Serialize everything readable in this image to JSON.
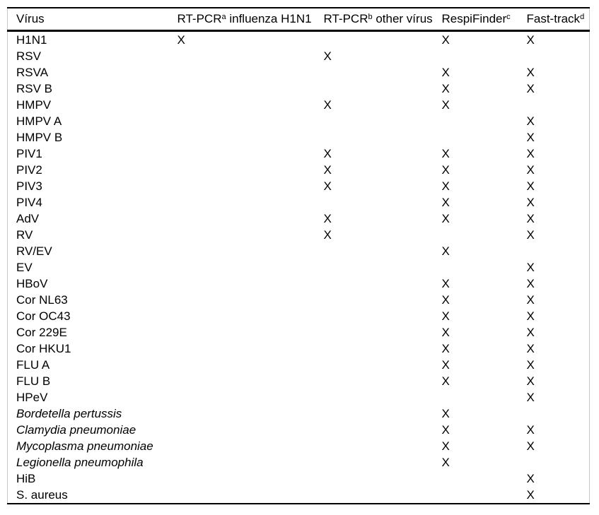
{
  "page": {
    "background": "#ffffff",
    "text_color": "#000000",
    "rule_color": "#000000",
    "frame_side_color": "#c9c9c9"
  },
  "table": {
    "mark_symbol": "X",
    "columns": [
      {
        "id": "virus",
        "text": "Vírus",
        "sup": "",
        "rest": ""
      },
      {
        "id": "rt-pcr-influenza",
        "text": "RT-PCR",
        "sup": "a",
        "rest": " influenza H1N1"
      },
      {
        "id": "rt-pcr-other-virus",
        "text": "RT-PCR",
        "sup": "b",
        "rest": " other vírus"
      },
      {
        "id": "respifinder",
        "text": "RespiFinder",
        "sup": "c",
        "rest": ""
      },
      {
        "id": "fast-track",
        "text": "Fast-track",
        "sup": "d",
        "rest": ""
      }
    ],
    "rows": [
      {
        "virus": "H1N1",
        "italic": false,
        "marks": [
          "X",
          "",
          "X",
          "X"
        ]
      },
      {
        "virus": "RSV",
        "italic": false,
        "marks": [
          "",
          "X",
          "",
          ""
        ]
      },
      {
        "virus": "RSVA",
        "italic": false,
        "marks": [
          "",
          "",
          "X",
          "X"
        ]
      },
      {
        "virus": "RSV B",
        "italic": false,
        "marks": [
          "",
          "",
          "X",
          "X"
        ]
      },
      {
        "virus": "HMPV",
        "italic": false,
        "marks": [
          "",
          "X",
          "X",
          ""
        ]
      },
      {
        "virus": "HMPV A",
        "italic": false,
        "marks": [
          "",
          "",
          "",
          "X"
        ]
      },
      {
        "virus": "HMPV B",
        "italic": false,
        "marks": [
          "",
          "",
          "",
          "X"
        ]
      },
      {
        "virus": "PIV1",
        "italic": false,
        "marks": [
          "",
          "X",
          "X",
          "X"
        ]
      },
      {
        "virus": "PIV2",
        "italic": false,
        "marks": [
          "",
          "X",
          "X",
          "X"
        ]
      },
      {
        "virus": "PIV3",
        "italic": false,
        "marks": [
          "",
          "X",
          "X",
          "X"
        ]
      },
      {
        "virus": "PIV4",
        "italic": false,
        "marks": [
          "",
          "",
          "X",
          "X"
        ]
      },
      {
        "virus": "AdV",
        "italic": false,
        "marks": [
          "",
          "X",
          "X",
          "X"
        ]
      },
      {
        "virus": "RV",
        "italic": false,
        "marks": [
          "",
          "X",
          "",
          "X"
        ]
      },
      {
        "virus": "RV/EV",
        "italic": false,
        "marks": [
          "",
          "",
          "X",
          ""
        ]
      },
      {
        "virus": "EV",
        "italic": false,
        "marks": [
          "",
          "",
          "",
          "X"
        ]
      },
      {
        "virus": "HBoV",
        "italic": false,
        "marks": [
          "",
          "",
          "X",
          "X"
        ]
      },
      {
        "virus": "Cor NL63",
        "italic": false,
        "marks": [
          "",
          "",
          "X",
          "X"
        ]
      },
      {
        "virus": "Cor OC43",
        "italic": false,
        "marks": [
          "",
          "",
          "X",
          "X"
        ]
      },
      {
        "virus": "Cor 229E",
        "italic": false,
        "marks": [
          "",
          "",
          "X",
          "X"
        ]
      },
      {
        "virus": "Cor HKU1",
        "italic": false,
        "marks": [
          "",
          "",
          "X",
          "X"
        ]
      },
      {
        "virus": "FLU A",
        "italic": false,
        "marks": [
          "",
          "",
          "X",
          "X"
        ]
      },
      {
        "virus": "FLU B",
        "italic": false,
        "marks": [
          "",
          "",
          "X",
          "X"
        ]
      },
      {
        "virus": "HPeV",
        "italic": false,
        "marks": [
          "",
          "",
          "",
          "X"
        ]
      },
      {
        "virus": "Bordetella pertussis",
        "italic": true,
        "marks": [
          "",
          "",
          "X",
          ""
        ]
      },
      {
        "virus": "Clamydia pneumoniae",
        "italic": true,
        "marks": [
          "",
          "",
          "X",
          "X"
        ]
      },
      {
        "virus": "Mycoplasma pneumoniae",
        "italic": true,
        "marks": [
          "",
          "",
          "X",
          "X"
        ]
      },
      {
        "virus": "Legionella pneumophila",
        "italic": true,
        "marks": [
          "",
          "",
          "X",
          ""
        ]
      },
      {
        "virus": "HiB",
        "italic": false,
        "marks": [
          "",
          "",
          "",
          "X"
        ]
      },
      {
        "virus": "S. aureus",
        "italic": false,
        "marks": [
          "",
          "",
          "",
          "X"
        ]
      }
    ]
  }
}
